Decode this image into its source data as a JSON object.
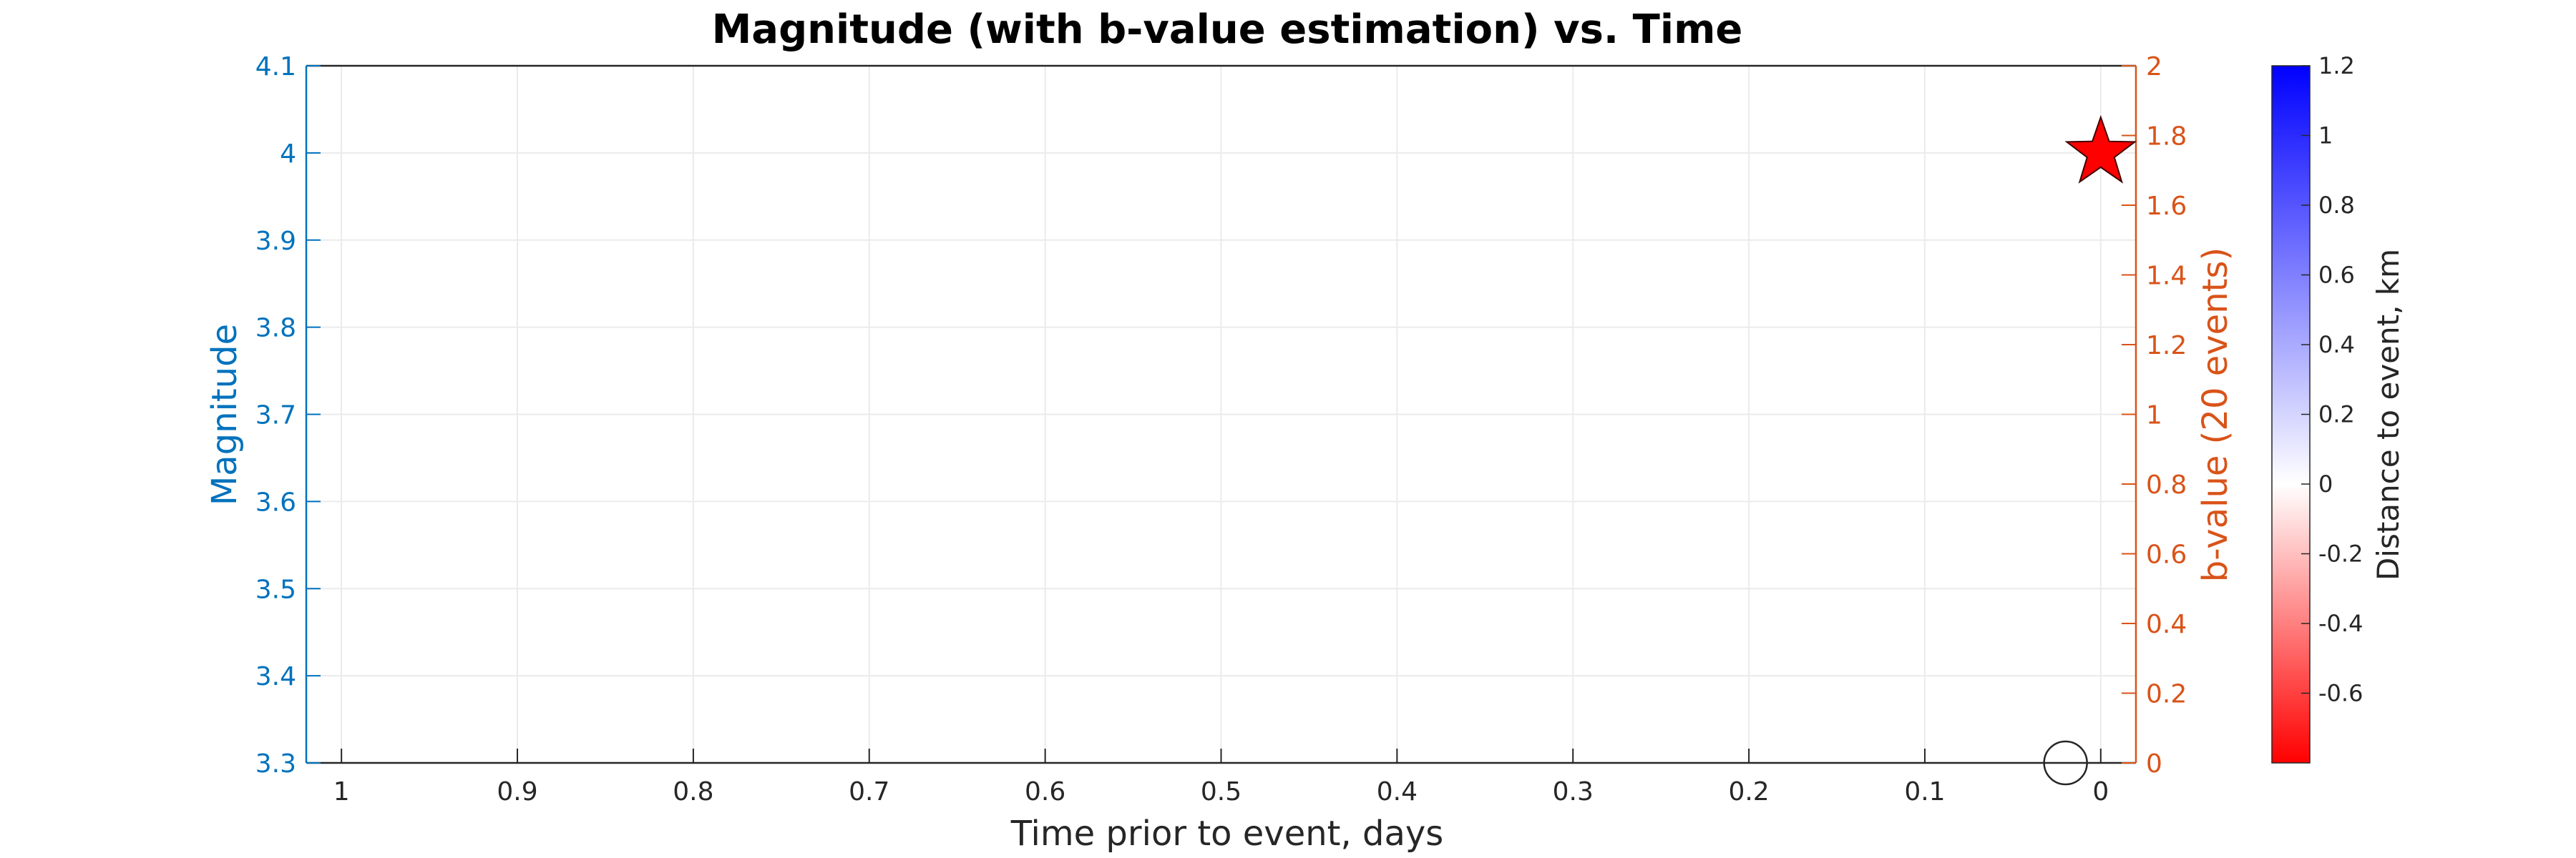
{
  "chart_data": {
    "type": "scatter",
    "title": "Magnitude (with b-value estimation) vs. Time",
    "xlabel": "Time prior to event, days",
    "ylabel_left": "Magnitude",
    "ylabel_right": "b-value (20 events)",
    "colorbar_label": "Distance to event, km",
    "x_reversed": true,
    "xlim": [
      -0.02,
      1.02
    ],
    "ylim_left": [
      3.3,
      4.1
    ],
    "ylim_right": [
      0,
      2
    ],
    "clim": [
      -0.8,
      1.2
    ],
    "grid": true,
    "x_ticks": [
      1,
      0.9,
      0.8,
      0.7,
      0.6,
      0.5,
      0.4,
      0.3,
      0.2,
      0.1,
      0
    ],
    "x_tick_labels": [
      "1",
      "0.9",
      "0.8",
      "0.7",
      "0.6",
      "0.5",
      "0.4",
      "0.3",
      "0.2",
      "0.1",
      "0"
    ],
    "y_left_ticks": [
      3.3,
      3.4,
      3.5,
      3.6,
      3.7,
      3.8,
      3.9,
      4.0,
      4.1
    ],
    "y_left_tick_labels": [
      "3.3",
      "3.4",
      "3.5",
      "3.6",
      "3.7",
      "3.8",
      "3.9",
      "4",
      "4.1"
    ],
    "y_right_ticks": [
      0,
      0.2,
      0.4,
      0.6,
      0.8,
      1.0,
      1.2,
      1.4,
      1.6,
      1.8,
      2.0
    ],
    "y_right_tick_labels": [
      "0",
      "0.2",
      "0.4",
      "0.6",
      "0.8",
      "1",
      "1.2",
      "1.4",
      "1.6",
      "1.8",
      "2"
    ],
    "colorbar_ticks": [
      -0.6,
      -0.4,
      -0.2,
      0,
      0.2,
      0.4,
      0.6,
      0.8,
      1.0,
      1.2
    ],
    "colorbar_tick_labels": [
      "-0.6",
      "-0.4",
      "-0.2",
      "0",
      "0.2",
      "0.4",
      "0.6",
      "0.8",
      "1",
      "1.2"
    ],
    "mainshock": {
      "x": 0,
      "magnitude": 4.0,
      "marker": "star",
      "color": "#ff0000"
    },
    "bvalue_points": [
      {
        "x": 0.02,
        "b": 0
      }
    ],
    "colors": {
      "left_axis": "#0072bd",
      "right_axis": "#d95319",
      "grid": "#ebebeb",
      "axis_box": "#262626",
      "colormap_low": "#ff0000",
      "colormap_mid": "#ffffff",
      "colormap_high": "#0000ff"
    }
  }
}
